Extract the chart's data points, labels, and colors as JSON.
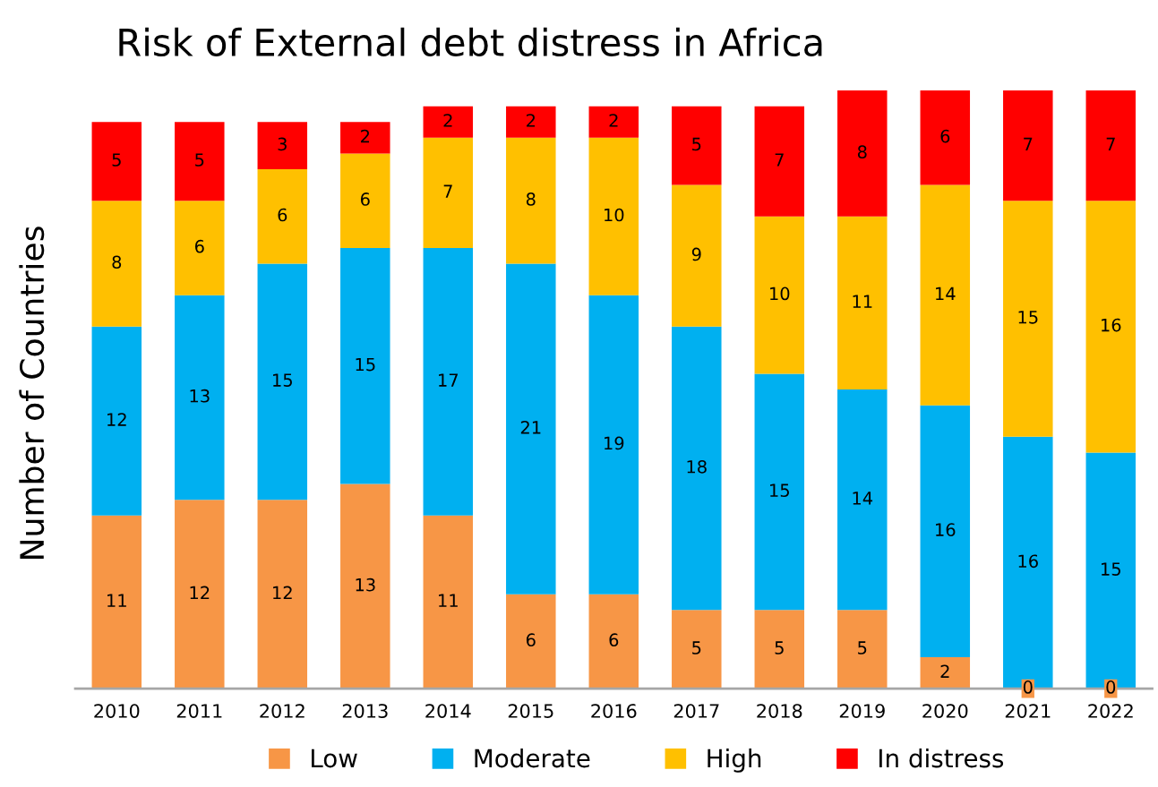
{
  "chart_data": {
    "type": "bar",
    "title": "Risk of External debt distress in Africa",
    "ylabel": "Number of Countries",
    "categories": [
      "2010",
      "2011",
      "2012",
      "2013",
      "2014",
      "2015",
      "2016",
      "2017",
      "2018",
      "2019",
      "2020",
      "2021",
      "2022"
    ],
    "stacked": true,
    "ylim": [
      0,
      38
    ],
    "tick_labels": "x",
    "legend": "bottom",
    "grid": false,
    "series": [
      {
        "name": "Low",
        "color": "#f79646",
        "values": [
          11,
          12,
          12,
          13,
          11,
          6,
          6,
          5,
          5,
          5,
          2,
          0,
          0
        ],
        "value_labels": [
          "11",
          "12",
          "12",
          "13",
          "11",
          "6",
          "6",
          "5",
          "5",
          "5",
          "2",
          "0",
          "0"
        ]
      },
      {
        "name": "Moderate",
        "color": "#00b0f0",
        "values": [
          12,
          13,
          15,
          15,
          17,
          21,
          19,
          18,
          15,
          14,
          16,
          16,
          15
        ],
        "value_labels": [
          "12",
          "13",
          "15",
          "15",
          "17",
          "21",
          "19",
          "18",
          "15",
          "14",
          "16",
          "16",
          "15"
        ]
      },
      {
        "name": "High",
        "color": "#ffc000",
        "values": [
          8,
          6,
          6,
          6,
          7,
          8,
          10,
          9,
          10,
          11,
          14,
          15,
          16
        ],
        "value_labels": [
          "8",
          "6",
          "6",
          "6",
          "7",
          "8",
          "10",
          "9",
          "10",
          "11",
          "14",
          "15",
          "16"
        ]
      },
      {
        "name": "In distress",
        "color": "#ff0000",
        "values": [
          5,
          5,
          3,
          2,
          2,
          2,
          2,
          5,
          7,
          8,
          6,
          7,
          7
        ],
        "value_labels": [
          "5",
          "5",
          "3",
          "2",
          "2",
          "2",
          "2",
          "5",
          "7",
          "8",
          "6",
          "7",
          "7"
        ]
      }
    ]
  }
}
